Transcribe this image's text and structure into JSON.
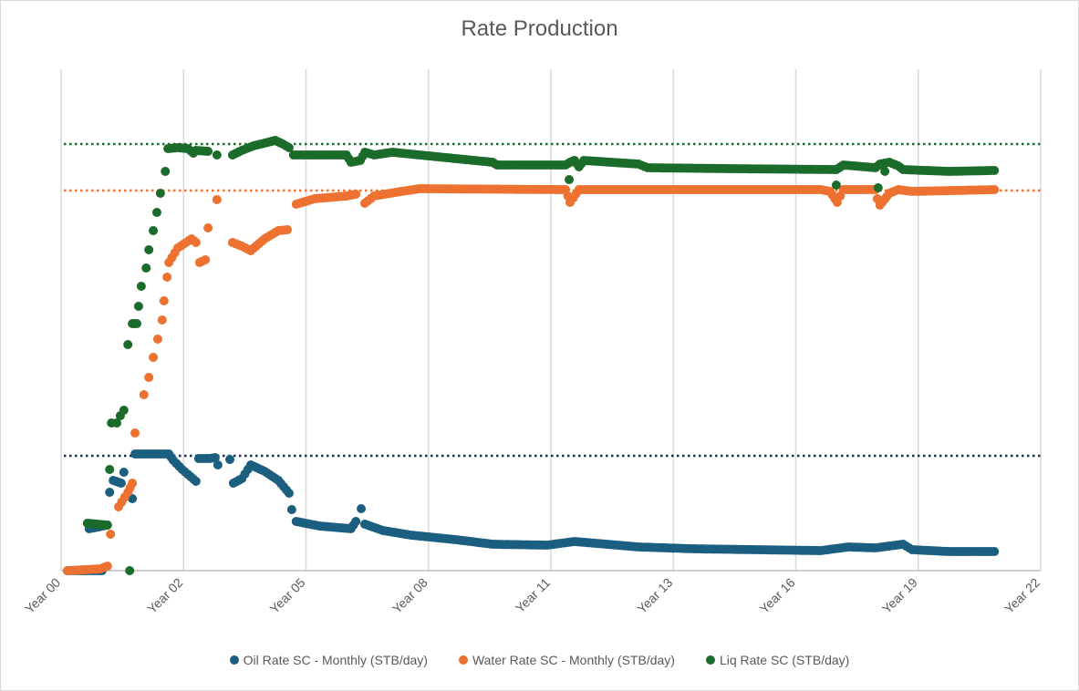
{
  "chart_data": {
    "type": "scatter",
    "title": "Rate Production",
    "xlabel": "",
    "ylabel": "",
    "xlim": [
      0,
      22
    ],
    "ylim": [
      0,
      1100
    ],
    "x_ticks": [
      0,
      2.75,
      5.5,
      8.25,
      11,
      13.75,
      16.5,
      19.25,
      22
    ],
    "x_tick_labels": [
      "Year 00",
      "Year 02",
      "Year 05",
      "Year 08",
      "Year 11",
      "Year 13",
      "Year 16",
      "Year 19",
      "Year 22"
    ],
    "grid": "vertical",
    "legend_position": "bottom",
    "series": [
      {
        "name": "Oil Rate SC - Monthly (STB/day)",
        "color": "#1b5e80",
        "reference_line": 252,
        "segments": [
          [
            [
              0.14,
              0
            ],
            [
              0.92,
              0
            ]
          ],
          [
            [
              0.63,
              92
            ],
            [
              1.04,
              100
            ]
          ],
          [
            [
              1.09,
              172
            ],
            [
              1.17,
              198
            ],
            [
              1.35,
              192
            ]
          ],
          [
            [
              1.66,
              256
            ],
            [
              2.42,
              256
            ],
            [
              2.52,
              242
            ],
            [
              2.72,
              222
            ],
            [
              3.03,
              196
            ]
          ],
          [
            [
              3.09,
              246
            ],
            [
              3.34,
              246
            ],
            [
              3.46,
              248
            ],
            [
              3.52,
              232
            ]
          ],
          [
            [
              3.87,
              192
            ],
            [
              4.06,
              202
            ],
            [
              4.26,
              232
            ],
            [
              4.57,
              218
            ],
            [
              4.88,
              198
            ],
            [
              5.12,
              170
            ]
          ],
          [
            [
              5.28,
              108
            ],
            [
              5.8,
              98
            ],
            [
              6.51,
              92
            ],
            [
              6.62,
              108
            ]
          ],
          [
            [
              6.82,
              102
            ],
            [
              7.23,
              88
            ],
            [
              7.85,
              78
            ],
            [
              8.87,
              68
            ],
            [
              9.69,
              58
            ],
            [
              10.92,
              56
            ],
            [
              11.53,
              64
            ],
            [
              12.97,
              52
            ],
            [
              14.2,
              48
            ],
            [
              17.06,
              44
            ],
            [
              17.68,
              52
            ],
            [
              18.29,
              50
            ],
            [
              18.91,
              58
            ],
            [
              19.11,
              46
            ],
            [
              19.93,
              42
            ],
            [
              20.96,
              42
            ]
          ]
        ],
        "points": [
          [
            1.41,
            216
          ],
          [
            1.6,
            158
          ],
          [
            3.79,
            244
          ],
          [
            5.18,
            134
          ],
          [
            6.74,
            136
          ]
        ]
      },
      {
        "name": "Water Rate SC - Monthly (STB/day)",
        "color": "#ed7130",
        "reference_line": 834,
        "segments": [
          [
            [
              0.14,
              0
            ],
            [
              0.88,
              4
            ],
            [
              1.04,
              10
            ]
          ],
          [
            [
              1.29,
              140
            ],
            [
              1.5,
              172
            ],
            [
              1.6,
              192
            ]
          ],
          [
            [
              2.38,
              644
            ],
            [
              2.42,
              676
            ],
            [
              2.62,
              708
            ],
            [
              2.93,
              728
            ],
            [
              3.03,
              720
            ]
          ],
          [
            [
              3.11,
              676
            ],
            [
              3.24,
              682
            ]
          ],
          [
            [
              3.85,
              720
            ],
            [
              4.06,
              712
            ],
            [
              4.26,
              702
            ],
            [
              4.57,
              728
            ],
            [
              4.88,
              746
            ],
            [
              5.08,
              748
            ]
          ],
          [
            [
              5.28,
              804
            ],
            [
              5.69,
              816
            ],
            [
              6.41,
              822
            ],
            [
              6.62,
              826
            ]
          ],
          [
            [
              6.82,
              806
            ],
            [
              7.03,
              822
            ],
            [
              7.64,
              832
            ],
            [
              8.05,
              838
            ],
            [
              11.33,
              836
            ],
            [
              11.43,
              808
            ],
            [
              11.63,
              836
            ],
            [
              17.06,
              836
            ],
            [
              17.27,
              832
            ],
            [
              17.43,
              808
            ],
            [
              17.57,
              836
            ],
            [
              18.29,
              836
            ],
            [
              18.33,
              816
            ],
            [
              18.39,
              802
            ],
            [
              18.6,
              828
            ],
            [
              18.8,
              836
            ],
            [
              19.11,
              832
            ],
            [
              20.96,
              836
            ]
          ]
        ],
        "points": [
          [
            1.11,
            80
          ],
          [
            1.66,
            302
          ],
          [
            1.86,
            386
          ],
          [
            1.97,
            424
          ],
          [
            2.07,
            468
          ],
          [
            2.17,
            508
          ],
          [
            2.27,
            550
          ],
          [
            2.31,
            592
          ],
          [
            3.3,
            752
          ],
          [
            3.5,
            814
          ]
        ]
      },
      {
        "name": "Liq Rate SC (STB/day)",
        "color": "#1b6b2a",
        "reference_line": 936,
        "segments": [
          [
            [
              0.59,
              104
            ],
            [
              1.04,
              100
            ]
          ],
          [
            [
              1.6,
              542
            ],
            [
              1.7,
              542
            ]
          ],
          [
            [
              2.4,
              926
            ],
            [
              2.62,
              928
            ],
            [
              2.85,
              926
            ],
            [
              2.97,
              916
            ],
            [
              3.03,
              922
            ],
            [
              3.3,
              920
            ]
          ],
          [
            [
              3.85,
              912
            ],
            [
              4.06,
              922
            ],
            [
              4.32,
              932
            ],
            [
              4.57,
              938
            ],
            [
              4.81,
              944
            ],
            [
              4.98,
              936
            ],
            [
              5.12,
              928
            ]
          ],
          [
            [
              5.22,
              912
            ],
            [
              6.41,
              912
            ],
            [
              6.51,
              896
            ],
            [
              6.72,
              900
            ],
            [
              6.82,
              918
            ],
            [
              7.03,
              912
            ],
            [
              7.44,
              918
            ],
            [
              8.05,
              912
            ],
            [
              8.87,
              904
            ],
            [
              9.69,
              896
            ],
            [
              9.79,
              890
            ],
            [
              11.33,
              890
            ],
            [
              11.43,
              896
            ],
            [
              11.53,
              900
            ],
            [
              11.63,
              886
            ],
            [
              11.74,
              900
            ],
            [
              12.97,
              892
            ],
            [
              13.17,
              884
            ],
            [
              15.01,
              882
            ],
            [
              17.41,
              880
            ],
            [
              17.57,
              890
            ],
            [
              18.29,
              884
            ],
            [
              18.39,
              892
            ],
            [
              18.6,
              896
            ],
            [
              18.8,
              888
            ],
            [
              18.91,
              880
            ],
            [
              19.93,
              876
            ],
            [
              20.96,
              878
            ]
          ]
        ],
        "points": [
          [
            1.09,
            222
          ],
          [
            1.13,
            324
          ],
          [
            1.25,
            324
          ],
          [
            1.33,
            340
          ],
          [
            1.41,
            352
          ],
          [
            1.5,
            496
          ],
          [
            1.54,
            0
          ],
          [
            1.74,
            580
          ],
          [
            1.8,
            624
          ],
          [
            1.91,
            664
          ],
          [
            1.97,
            704
          ],
          [
            2.07,
            746
          ],
          [
            2.15,
            786
          ],
          [
            2.23,
            828
          ],
          [
            2.34,
            876
          ],
          [
            3.5,
            912
          ],
          [
            11.41,
            858
          ],
          [
            17.41,
            846
          ],
          [
            18.35,
            840
          ],
          [
            18.5,
            876
          ]
        ]
      }
    ]
  }
}
